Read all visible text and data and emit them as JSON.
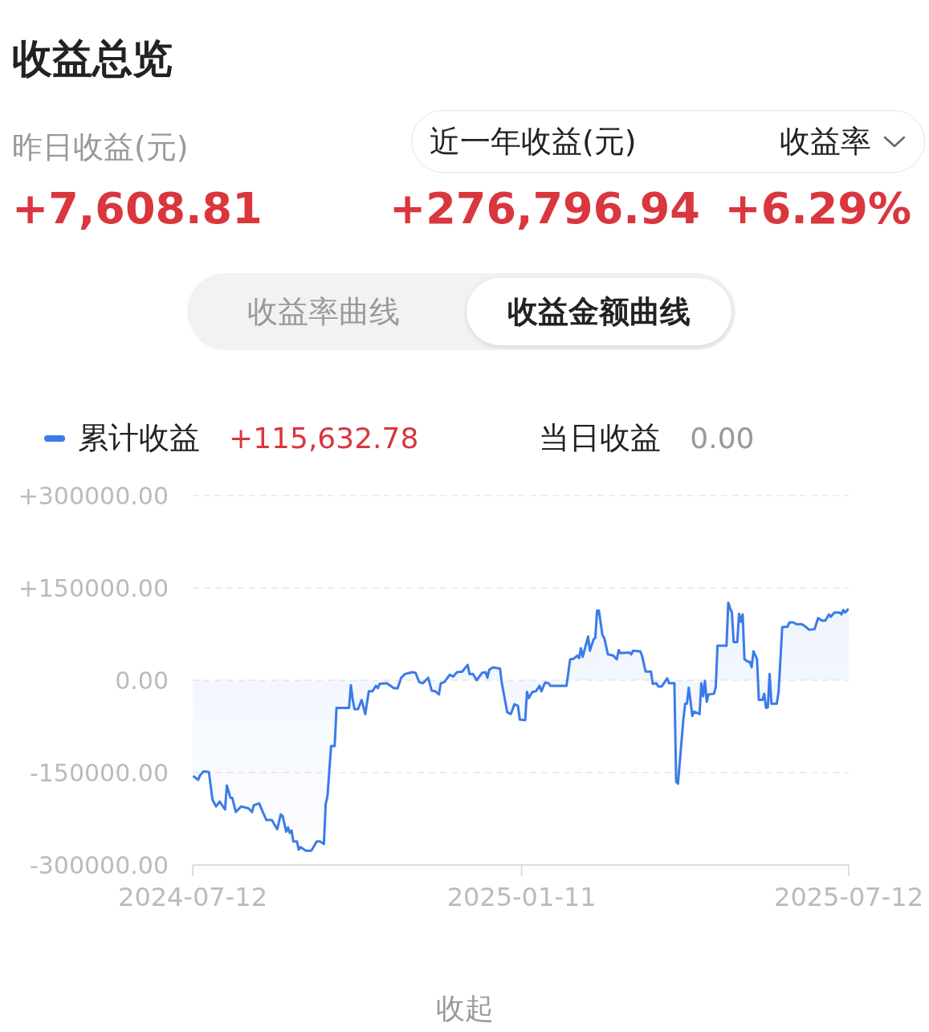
{
  "chart_data": {
    "type": "area",
    "title": "收益总览",
    "annotations": [
      "昨日收益(元)",
      "+7,608.81",
      "近一年收益(元)",
      "收益率",
      "+276,796.94",
      "+6.29%",
      "收益率曲线",
      "收益金额曲线",
      "+115,632.78",
      "当日收益",
      "0.00",
      "收起"
    ],
    "x": [
      "2024-07-12",
      "2024-07-13",
      "2024-07-15",
      "2024-07-16",
      "2024-07-18",
      "2024-07-21",
      "2024-07-23",
      "2024-07-25",
      "2024-07-27",
      "2024-07-30",
      "2024-07-31",
      "2024-08-02",
      "2024-08-03",
      "2024-08-05",
      "2024-08-08",
      "2024-08-12",
      "2024-08-14",
      "2024-08-15",
      "2024-08-18",
      "2024-08-20",
      "2024-08-22",
      "2024-08-25",
      "2024-08-28",
      "2024-08-30",
      "2024-08-31",
      "2024-09-02",
      "2024-09-03",
      "2024-09-04",
      "2024-09-05",
      "2024-09-06",
      "2024-09-08",
      "2024-09-09",
      "2024-09-10",
      "2024-09-13",
      "2024-09-16",
      "2024-09-19",
      "2024-09-21",
      "2024-09-23",
      "2024-09-24",
      "2024-09-25",
      "2024-09-27",
      "2024-09-29",
      "2024-09-30",
      "2024-10-07",
      "2024-10-08",
      "2024-10-09",
      "2024-10-10",
      "2024-10-12",
      "2024-10-14",
      "2024-10-16",
      "2024-10-18",
      "2024-10-20",
      "2024-10-22",
      "2024-10-23",
      "2024-10-24",
      "2024-10-28",
      "2024-11-01",
      "2024-11-03",
      "2024-11-05",
      "2024-11-07",
      "2024-11-11",
      "2024-11-13",
      "2024-11-15",
      "2024-11-17",
      "2024-11-20",
      "2024-11-22",
      "2024-11-24",
      "2024-11-26",
      "2024-11-27",
      "2024-11-29",
      "2024-12-02",
      "2024-12-04",
      "2024-12-06",
      "2024-12-09",
      "2024-12-12",
      "2024-12-13",
      "2024-12-15",
      "2024-12-17",
      "2024-12-20",
      "2024-12-22",
      "2024-12-23",
      "2024-12-24",
      "2024-12-26",
      "2024-12-30",
      "2024-12-31",
      "2025-01-03",
      "2025-01-05",
      "2025-01-07",
      "2025-01-09",
      "2025-01-10",
      "2025-01-13",
      "2025-01-14",
      "2025-01-15",
      "2025-01-17",
      "2025-01-19",
      "2025-01-21",
      "2025-01-22",
      "2025-01-24",
      "2025-01-26",
      "2025-01-27",
      "2025-02-05",
      "2025-02-07",
      "2025-02-09",
      "2025-02-11",
      "2025-02-12",
      "2025-02-13",
      "2025-02-14",
      "2025-02-16",
      "2025-02-17",
      "2025-02-18",
      "2025-02-20",
      "2025-02-21",
      "2025-02-22",
      "2025-02-23",
      "2025-02-25",
      "2025-02-26",
      "2025-02-28",
      "2025-03-03",
      "2025-03-05",
      "2025-03-06",
      "2025-03-07",
      "2025-03-12",
      "2025-03-13",
      "2025-03-14",
      "2025-03-18",
      "2025-03-19",
      "2025-03-21",
      "2025-03-24",
      "2025-03-25",
      "2025-03-27",
      "2025-03-28",
      "2025-03-30",
      "2025-04-02",
      "2025-04-03",
      "2025-04-06",
      "2025-04-07",
      "2025-04-08",
      "2025-04-11",
      "2025-04-12",
      "2025-04-13",
      "2025-04-14",
      "2025-04-16",
      "2025-04-17",
      "2025-04-20",
      "2025-04-21",
      "2025-04-22",
      "2025-04-23",
      "2025-04-24",
      "2025-04-25",
      "2025-04-28",
      "2025-04-29",
      "2025-04-30",
      "2025-05-05",
      "2025-05-06",
      "2025-05-07",
      "2025-05-08",
      "2025-05-09",
      "2025-05-11",
      "2025-05-12",
      "2025-05-13",
      "2025-05-14",
      "2025-05-15",
      "2025-05-17",
      "2025-05-18",
      "2025-05-19",
      "2025-05-20",
      "2025-05-22",
      "2025-05-23",
      "2025-05-25",
      "2025-05-26",
      "2025-05-27",
      "2025-05-28",
      "2025-05-29",
      "2025-05-30",
      "2025-06-02",
      "2025-06-03",
      "2025-06-05",
      "2025-06-08",
      "2025-06-09",
      "2025-06-11",
      "2025-06-13",
      "2025-06-16",
      "2025-06-18",
      "2025-06-20",
      "2025-06-23",
      "2025-06-25",
      "2025-06-27",
      "2025-06-29",
      "2025-07-01",
      "2025-07-02",
      "2025-07-04",
      "2025-07-07",
      "2025-07-08",
      "2025-07-09",
      "2025-07-10",
      "2025-07-12"
    ],
    "series": [
      {
        "name": "累计收益",
        "color": "#3b7be8",
        "values": [
          -156000,
          -157000,
          -162000,
          -155000,
          -148000,
          -149000,
          -194000,
          -205000,
          -197000,
          -210000,
          -171000,
          -191000,
          -191000,
          -214000,
          -205000,
          -208000,
          -214000,
          -203000,
          -200000,
          -214000,
          -227000,
          -227000,
          -242000,
          -218000,
          -220000,
          -246000,
          -239000,
          -248000,
          -244000,
          -262000,
          -262000,
          -275000,
          -271000,
          -277000,
          -277000,
          -262000,
          -262000,
          -266000,
          -201000,
          -188000,
          -107000,
          -107000,
          -45000,
          -45000,
          -8000,
          -31000,
          -47000,
          -47000,
          -32000,
          -55000,
          -18000,
          -18000,
          -9000,
          -13000,
          -6000,
          -5000,
          -13000,
          -13000,
          4000,
          10000,
          13000,
          12000,
          -3000,
          -5000,
          4000,
          -17000,
          -18000,
          -23000,
          -5000,
          -3000,
          9000,
          6000,
          13000,
          14000,
          25000,
          10000,
          10000,
          0,
          12000,
          13000,
          4000,
          17000,
          21000,
          19000,
          -5000,
          -52000,
          -55000,
          -39000,
          -42000,
          -64000,
          -65000,
          -19000,
          -29000,
          -19000,
          -18000,
          -9000,
          -18000,
          -4000,
          -5000,
          -9000,
          -9000,
          34000,
          35000,
          40000,
          36000,
          52000,
          38000,
          60000,
          71000,
          48000,
          66000,
          69000,
          113000,
          113000,
          73000,
          69000,
          42000,
          40000,
          34000,
          49000,
          44000,
          45000,
          42000,
          48000,
          47000,
          40000,
          14000,
          14000,
          -6000,
          -5000,
          -10000,
          -10000,
          3000,
          -5000,
          -5000,
          -165000,
          -168000,
          -64000,
          -38000,
          -38000,
          -12000,
          -58000,
          -51000,
          -55000,
          -5000,
          -26000,
          -1000,
          -35000,
          -23000,
          -22000,
          -12000,
          56000,
          56000,
          126000,
          117000,
          110000,
          62000,
          62000,
          108000,
          95000,
          107000,
          34000,
          30000,
          30000,
          21000,
          47000,
          34000,
          -32000,
          -32000,
          -22000,
          -45000,
          -44000,
          10000,
          -38000,
          -38000,
          -19000,
          86000,
          87000,
          94000,
          94000,
          91000,
          91000,
          87000,
          82000,
          83000,
          101000,
          97000,
          97000,
          107000,
          103000,
          110000,
          110000,
          107000,
          114000,
          110000,
          116000
        ]
      }
    ],
    "xlim": [
      "2024-07-12",
      "2025-07-12"
    ],
    "xticks": [
      "2024-07-12",
      "2025-01-11",
      "2025-07-12"
    ],
    "ylim": [
      -300000,
      300000
    ],
    "yticks": [
      {
        "value": -300000,
        "label": "-300000.00"
      },
      {
        "value": -150000,
        "label": "-150000.00"
      },
      {
        "value": 0,
        "label": "0.00"
      },
      {
        "value": 150000,
        "label": "+150000.00"
      },
      {
        "value": 300000,
        "label": "+300000.00"
      }
    ],
    "grid": "y",
    "legend": "top left",
    "marker": "none",
    "line_style": "solid"
  }
}
